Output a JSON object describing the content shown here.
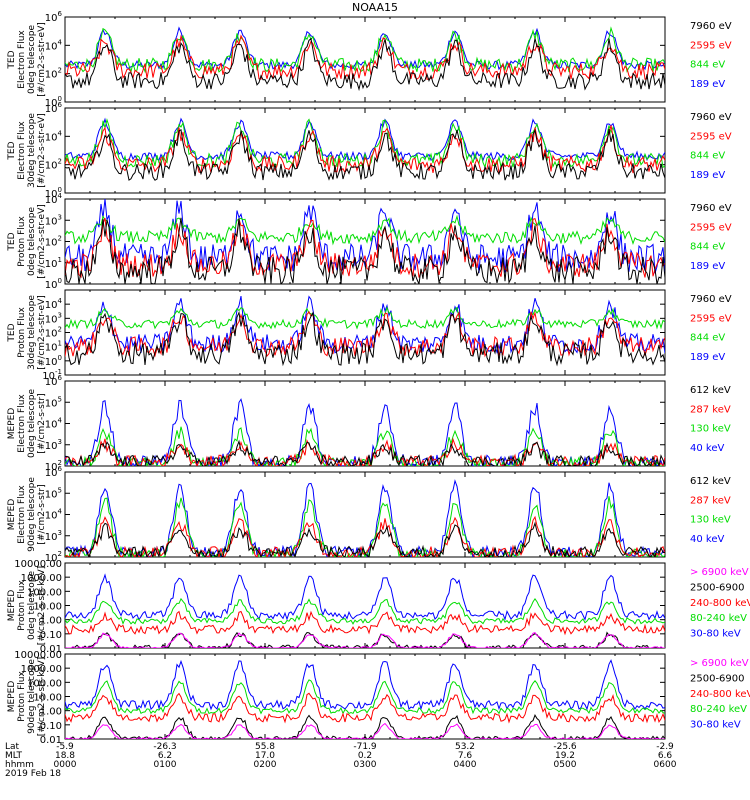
{
  "title": "NOAA15",
  "colors": {
    "black": "#000000",
    "red": "#ff0000",
    "green": "#00dd00",
    "blue": "#0000ff",
    "magenta": "#ff00ff"
  },
  "xaxis": {
    "rows": [
      {
        "label": "Lat",
        "values": [
          "-5.9",
          "-26.3",
          "55.8",
          "-71.9",
          "53.2",
          "-25.6",
          "-2.9"
        ]
      },
      {
        "label": "MLT",
        "values": [
          "18.8",
          "6.2",
          "17.0",
          "0.2",
          "7.6",
          "19.2",
          "6.6"
        ]
      },
      {
        "label": "hhmm",
        "values": [
          "0000",
          "0100",
          "0200",
          "0300",
          "0400",
          "0500",
          "0600"
        ]
      }
    ],
    "date": "2019 Feb 18",
    "range_hours": [
      0,
      6
    ]
  },
  "chart_data": [
    {
      "type": "line",
      "id": "ted-e-0",
      "ylabel": [
        "TED",
        "Electron Flux",
        "0deg telescope",
        "[#/cm2-s-str-eV]"
      ],
      "yscale": "log",
      "ylim": [
        1,
        1000000
      ],
      "ticks": [
        {
          "v": 1,
          "t": "10",
          "e": "0"
        },
        {
          "v": 100,
          "t": "10",
          "e": "2"
        },
        {
          "v": 10000,
          "t": "10",
          "e": "4"
        },
        {
          "v": 1000000,
          "t": "10",
          "e": "6"
        }
      ],
      "series": [
        {
          "name": "7960 eV",
          "color": "#000000",
          "base": 1.5,
          "peak": 4,
          "noise": 0.6
        },
        {
          "name": "2595 eV",
          "color": "#ff0000",
          "base": 2.2,
          "peak": 4.2,
          "noise": 0.6
        },
        {
          "name": "844 eV",
          "color": "#00dd00",
          "base": 2.6,
          "peak": 4.8,
          "noise": 0.5
        },
        {
          "name": "189 eV",
          "color": "#0000ff",
          "base": 2.6,
          "peak": 5.0,
          "noise": 0.3
        }
      ]
    },
    {
      "type": "line",
      "id": "ted-e-30",
      "ylabel": [
        "TED",
        "Electron Flux",
        "30deg telescope",
        "[#/cm2-s-str-eV]"
      ],
      "yscale": "log",
      "ylim": [
        1,
        1000000
      ],
      "ticks": [
        {
          "v": 1,
          "t": "10",
          "e": "0"
        },
        {
          "v": 100,
          "t": "10",
          "e": "2"
        },
        {
          "v": 10000,
          "t": "10",
          "e": "4"
        },
        {
          "v": 1000000,
          "t": "10",
          "e": "6"
        }
      ],
      "series": [
        {
          "name": "7960 eV",
          "color": "#000000",
          "base": 1.5,
          "peak": 4,
          "noise": 0.6
        },
        {
          "name": "2595 eV",
          "color": "#ff0000",
          "base": 2.0,
          "peak": 4.2,
          "noise": 0.6
        },
        {
          "name": "844 eV",
          "color": "#00dd00",
          "base": 2.3,
          "peak": 4.8,
          "noise": 0.5
        },
        {
          "name": "189 eV",
          "color": "#0000ff",
          "base": 2.6,
          "peak": 5.0,
          "noise": 0.3
        }
      ]
    },
    {
      "type": "line",
      "id": "ted-p-0",
      "ylabel": [
        "TED",
        "Proton Flux",
        "0deg telescope",
        "[#/cm2-s-str-eV]"
      ],
      "yscale": "log",
      "ylim": [
        1,
        10000
      ],
      "ticks": [
        {
          "v": 1,
          "t": "10",
          "e": "0"
        },
        {
          "v": 10,
          "t": "10",
          "e": "1"
        },
        {
          "v": 100,
          "t": "10",
          "e": "2"
        },
        {
          "v": 1000,
          "t": "10",
          "e": "3"
        },
        {
          "v": 10000,
          "t": "10",
          "e": "4"
        }
      ],
      "series": [
        {
          "name": "7960 eV",
          "color": "#000000",
          "base": 0.6,
          "peak": 2.5,
          "noise": 0.7
        },
        {
          "name": "2595 eV",
          "color": "#ff0000",
          "base": 0.9,
          "peak": 2.6,
          "noise": 0.6
        },
        {
          "name": "844 eV",
          "color": "#00dd00",
          "base": 2.2,
          "peak": 3.0,
          "noise": 0.3
        },
        {
          "name": "189 eV",
          "color": "#0000ff",
          "base": 1.2,
          "peak": 3.5,
          "noise": 0.7
        }
      ]
    },
    {
      "type": "line",
      "id": "ted-p-30",
      "ylabel": [
        "TED",
        "Proton Flux",
        "30deg telescope",
        "[#/cm2-s-str-eV]"
      ],
      "yscale": "log",
      "ylim": [
        0.1,
        100000
      ],
      "ticks": [
        {
          "v": 0.1,
          "t": "10",
          "e": "-1"
        },
        {
          "v": 1,
          "t": "10",
          "e": "0"
        },
        {
          "v": 10,
          "t": "10",
          "e": "1"
        },
        {
          "v": 100,
          "t": "10",
          "e": "2"
        },
        {
          "v": 1000,
          "t": "10",
          "e": "3"
        },
        {
          "v": 10000,
          "t": "10",
          "e": "4"
        }
      ],
      "series": [
        {
          "name": "7960 eV",
          "color": "#000000",
          "base": 0.5,
          "peak": 3.0,
          "noise": 0.8
        },
        {
          "name": "2595 eV",
          "color": "#ff0000",
          "base": 1.0,
          "peak": 3.2,
          "noise": 0.7
        },
        {
          "name": "844 eV",
          "color": "#00dd00",
          "base": 2.6,
          "peak": 3.5,
          "noise": 0.3
        },
        {
          "name": "189 eV",
          "color": "#0000ff",
          "base": 1.2,
          "peak": 4.0,
          "noise": 0.7
        }
      ]
    },
    {
      "type": "line",
      "id": "meped-e-0",
      "ylabel": [
        "MEPED",
        "Electron Flux",
        "0deg telescope",
        "[#/cm2-s-str]"
      ],
      "yscale": "log",
      "ylim": [
        100,
        1000000
      ],
      "ticks": [
        {
          "v": 100,
          "t": "10",
          "e": "2"
        },
        {
          "v": 1000,
          "t": "10",
          "e": "3"
        },
        {
          "v": 10000,
          "t": "10",
          "e": "4"
        },
        {
          "v": 100000,
          "t": "10",
          "e": "5"
        },
        {
          "v": 1000000,
          "t": "10",
          "e": "6"
        }
      ],
      "series": [
        {
          "name": "612 keV",
          "color": "#000000",
          "base": 2.2,
          "peak": 2.9,
          "noise": 0.3
        },
        {
          "name": "287 keV",
          "color": "#ff0000",
          "base": 2.2,
          "peak": 3.0,
          "noise": 0.3
        },
        {
          "name": "130 keV",
          "color": "#00dd00",
          "base": 2.1,
          "peak": 3.6,
          "noise": 0.3
        },
        {
          "name": "40 keV",
          "color": "#0000ff",
          "base": 2.1,
          "peak": 4.8,
          "noise": 0.4
        }
      ]
    },
    {
      "type": "line",
      "id": "meped-e-90",
      "ylabel": [
        "MEPED",
        "Electron Flux",
        "90deg telescope",
        "[#/cm2-s-str]"
      ],
      "yscale": "log",
      "ylim": [
        100,
        1000000
      ],
      "ticks": [
        {
          "v": 100,
          "t": "10",
          "e": "2"
        },
        {
          "v": 1000,
          "t": "10",
          "e": "3"
        },
        {
          "v": 10000,
          "t": "10",
          "e": "4"
        },
        {
          "v": 100000,
          "t": "10",
          "e": "5"
        },
        {
          "v": 1000000,
          "t": "10",
          "e": "6"
        }
      ],
      "series": [
        {
          "name": "612 keV",
          "color": "#000000",
          "base": 2.2,
          "peak": 3.3,
          "noise": 0.3
        },
        {
          "name": "287 keV",
          "color": "#ff0000",
          "base": 2.2,
          "peak": 3.6,
          "noise": 0.3
        },
        {
          "name": "130 keV",
          "color": "#00dd00",
          "base": 2.1,
          "peak": 4.6,
          "noise": 0.3
        },
        {
          "name": "40 keV",
          "color": "#0000ff",
          "base": 2.2,
          "peak": 5.3,
          "noise": 0.3
        }
      ]
    },
    {
      "type": "line",
      "id": "meped-p-0",
      "ylabel": [
        "MEPED",
        "Proton Flux",
        "0deg telescope",
        "[#/cm2-s-str-keV]"
      ],
      "yscale": "log",
      "ylim": [
        0.01,
        10000
      ],
      "ticks": [
        {
          "v": 0.01,
          "t": "0.01"
        },
        {
          "v": 0.1,
          "t": "0.10"
        },
        {
          "v": 1,
          "t": "1.00"
        },
        {
          "v": 10,
          "t": "10.00"
        },
        {
          "v": 100,
          "t": "100.00"
        },
        {
          "v": 1000,
          "t": "1000.00"
        },
        {
          "v": 10000,
          "t": "10000.00"
        }
      ],
      "series": [
        {
          "name": "> 6900 keV",
          "color": "#ff00ff",
          "base": -2.0,
          "peak": -1.0,
          "noise": 0.1
        },
        {
          "name": "2500-6900",
          "color": "#000000",
          "base": -2.0,
          "peak": -1.0,
          "noise": 0.2
        },
        {
          "name": "240-800 keV",
          "color": "#ff0000",
          "base": -0.7,
          "peak": 0.3,
          "noise": 0.3
        },
        {
          "name": "80-240 keV",
          "color": "#00dd00",
          "base": -0.1,
          "peak": 1.3,
          "noise": 0.2
        },
        {
          "name": "30-80 keV",
          "color": "#0000ff",
          "base": 0.3,
          "peak": 3.0,
          "noise": 0.3
        }
      ]
    },
    {
      "type": "line",
      "id": "meped-p-90",
      "ylabel": [
        "MEPED",
        "Proton Flux",
        "90deg telescope",
        "[#/cm2-s-str-keV]"
      ],
      "yscale": "log",
      "ylim": [
        0.01,
        10000
      ],
      "ticks": [
        {
          "v": 0.01,
          "t": "0.01"
        },
        {
          "v": 0.1,
          "t": "0.10"
        },
        {
          "v": 1,
          "t": "1.00"
        },
        {
          "v": 10,
          "t": "10.00"
        },
        {
          "v": 100,
          "t": "100.00"
        },
        {
          "v": 1000,
          "t": "1000.00"
        },
        {
          "v": 10000,
          "t": "10000.00"
        }
      ],
      "series": [
        {
          "name": "> 6900 keV",
          "color": "#ff00ff",
          "base": -2.0,
          "peak": -1.0,
          "noise": 0.1
        },
        {
          "name": "2500-6900",
          "color": "#000000",
          "base": -2.0,
          "peak": -0.5,
          "noise": 0.2
        },
        {
          "name": "240-800 keV",
          "color": "#ff0000",
          "base": -0.5,
          "peak": 1.0,
          "noise": 0.3
        },
        {
          "name": "80-240 keV",
          "color": "#00dd00",
          "base": 0.0,
          "peak": 2.0,
          "noise": 0.2
        },
        {
          "name": "30-80 keV",
          "color": "#0000ff",
          "base": 0.4,
          "peak": 3.3,
          "noise": 0.3
        }
      ]
    }
  ]
}
